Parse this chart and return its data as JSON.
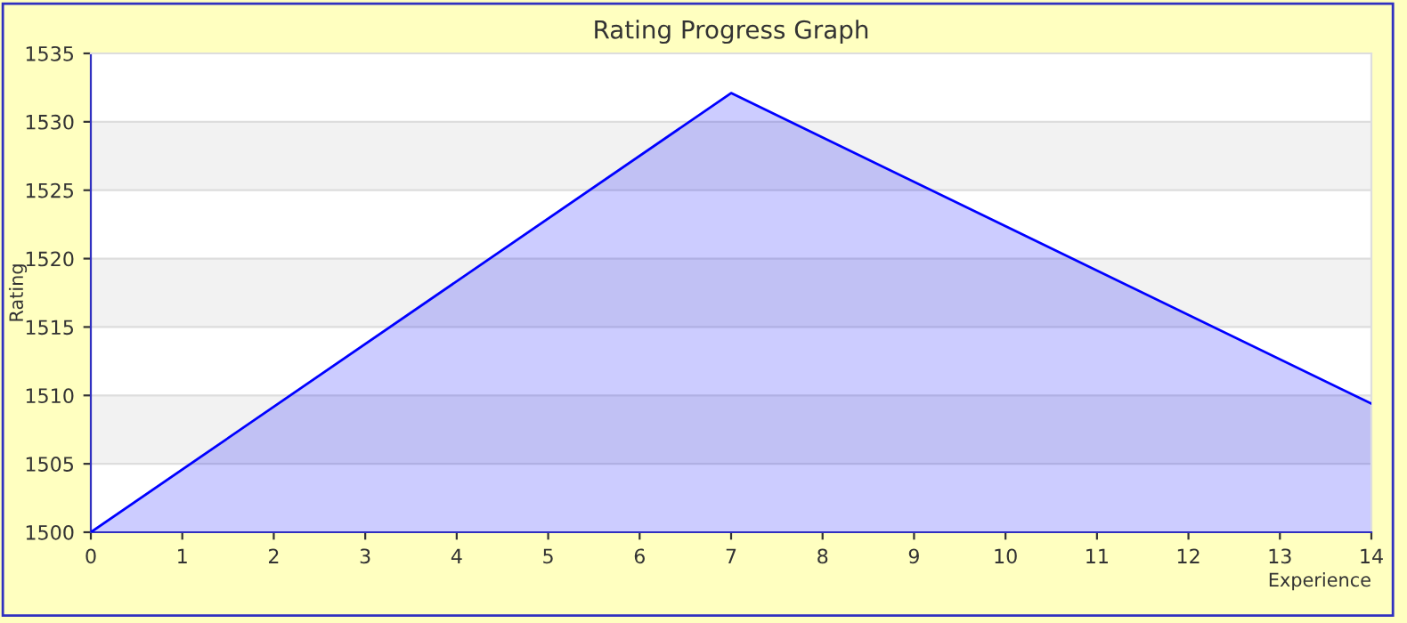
{
  "chart_data": {
    "type": "area",
    "title": "Rating Progress Graph",
    "xlabel": "Experience",
    "ylabel": "Rating",
    "x": [
      0,
      7,
      14
    ],
    "series": [
      {
        "color": "#0000ff",
        "values": [
          1500,
          1532.1,
          1509.4
        ]
      }
    ],
    "xlim": [
      0,
      14
    ],
    "xticks": [
      0,
      1,
      2,
      3,
      4,
      5,
      6,
      7,
      8,
      9,
      10,
      11,
      12,
      13,
      14
    ],
    "ylim": [
      1500,
      1535
    ],
    "yticks": [
      1500,
      1505,
      1510,
      1515,
      1520,
      1525,
      1530,
      1535
    ],
    "grid": "y",
    "legend": false
  }
}
